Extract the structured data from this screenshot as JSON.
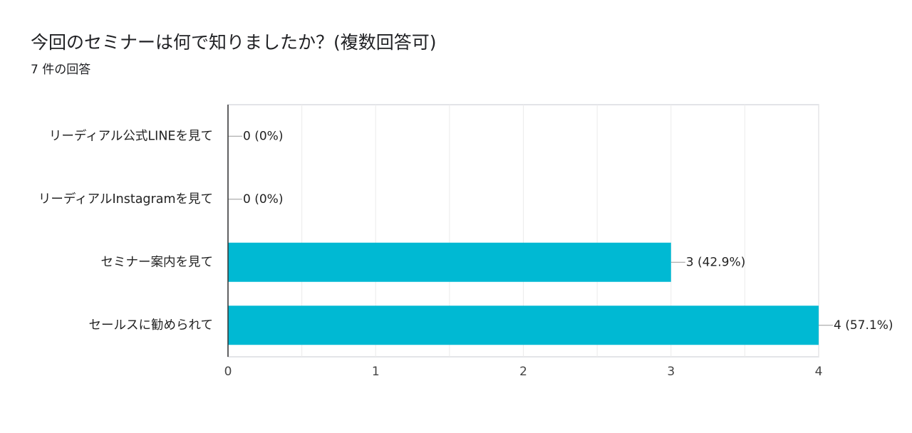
{
  "question": {
    "title": "今回のセミナーは何で知りましたか？(複数回答可)",
    "response_count": "7 件の回答"
  },
  "colors": {
    "bar": "#00b9d3",
    "grid": "#ebebeb",
    "axis": "#333333",
    "frame": "#dadce0"
  },
  "chart_data": {
    "type": "bar",
    "orientation": "horizontal",
    "title": "今回のセミナーは何で知りましたか？(複数回答可)",
    "categories": [
      "リーディアル公式LINEを見て",
      "リーディアルInstagramを見て",
      "セミナー案内を見て",
      "セールスに勧められて"
    ],
    "values": [
      0,
      0,
      3,
      4
    ],
    "data_labels": [
      "0 (0%)",
      "0 (0%)",
      "3 (42.9%)",
      "4 (57.1%)"
    ],
    "xlim": [
      0,
      4
    ],
    "x_ticks": [
      "0",
      "1",
      "2",
      "3",
      "4"
    ],
    "grid": true,
    "legend": "none"
  }
}
